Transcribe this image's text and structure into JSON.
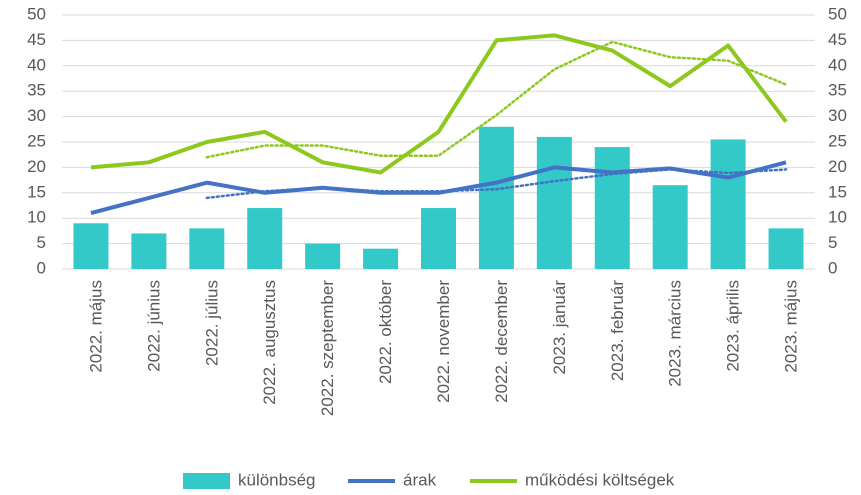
{
  "chart_data": {
    "type": "bar",
    "categories": [
      "2022. május",
      "2022. június",
      "2022. július",
      "2022. augusztus",
      "2022. szeptember",
      "2022. október",
      "2022. november",
      "2022. december",
      "2023. január",
      "2023. február",
      "2023. március",
      "2023. április",
      "2023. május"
    ],
    "series": [
      {
        "name": "különbség",
        "type": "bar",
        "color": "#33c9c9",
        "values": [
          9,
          7,
          8,
          12,
          5,
          4,
          12,
          28,
          26,
          24,
          16.5,
          25.5,
          8
        ]
      },
      {
        "name": "árak",
        "type": "line",
        "color": "#4472c4",
        "values": [
          11,
          14,
          17,
          15,
          16,
          15,
          15,
          17,
          20,
          19,
          19.8,
          18,
          21
        ]
      },
      {
        "name": "működési költségek",
        "type": "line",
        "color": "#8dc81e",
        "values": [
          20,
          21,
          25,
          27,
          21,
          19,
          27,
          45,
          46,
          43,
          36,
          44,
          29
        ]
      }
    ],
    "trendlines": [
      {
        "color": "#4472c4",
        "style": "dotted",
        "values": [
          null,
          null,
          14,
          15.3,
          16,
          15.3,
          15.3,
          15.7,
          17.3,
          18.7,
          19.6,
          18.9,
          19.6
        ]
      },
      {
        "color": "#8dc81e",
        "style": "dotted",
        "values": [
          null,
          null,
          22,
          24.3,
          24.3,
          22.3,
          22.3,
          30.3,
          39.3,
          44.7,
          41.7,
          41,
          36.3
        ]
      }
    ],
    "ylim": [
      0,
      50
    ],
    "yticks": [
      0,
      5,
      10,
      15,
      20,
      25,
      30,
      35,
      40,
      45,
      50
    ],
    "y2lim": [
      0,
      50
    ],
    "y2ticks": [
      0,
      5,
      10,
      15,
      20,
      25,
      30,
      35,
      40,
      45,
      50
    ],
    "grid": true,
    "legend": "bottom"
  }
}
